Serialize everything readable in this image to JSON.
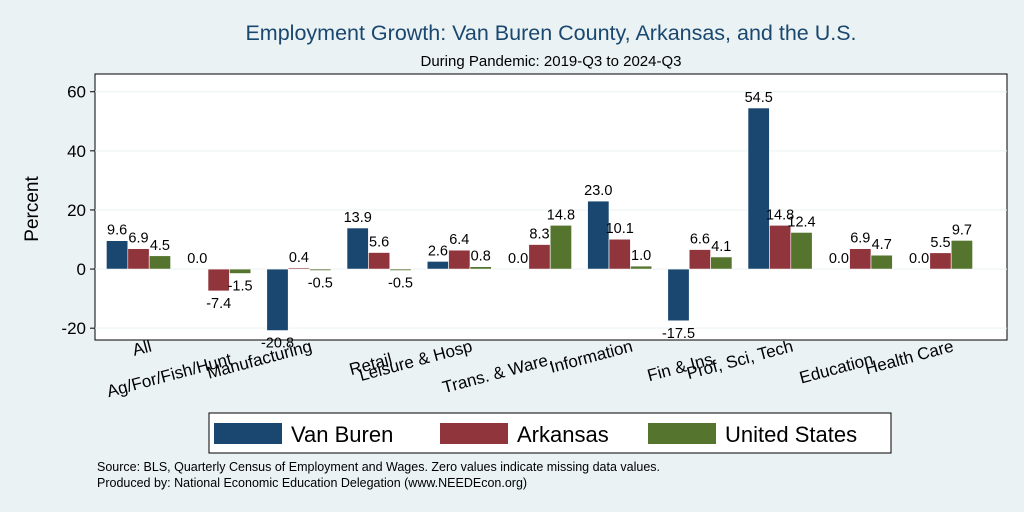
{
  "chart_data": {
    "type": "bar",
    "title": "Employment Growth: Van Buren County, Arkansas, and the U.S.",
    "subtitle": "During Pandemic: 2019-Q3 to 2024-Q3",
    "ylabel": "Percent",
    "xlabel": "",
    "ylim": [
      -24,
      66
    ],
    "yticks": [
      -20,
      0,
      20,
      40,
      60
    ],
    "ytick_labels": [
      "-20",
      "0",
      "20",
      "40",
      "60"
    ],
    "grid": true,
    "legend_position": "bottom",
    "categories": [
      "All",
      "Ag/For/Fish/Hunt",
      "Manufacturing",
      "Retail",
      "Leisure & Hosp",
      "Trans. & Ware.",
      "Information",
      "Fin & Ins",
      "Prof, Sci, Tech",
      "Education",
      "Health Care"
    ],
    "series": [
      {
        "name": "Van Buren",
        "color": "#1a476f",
        "values": [
          9.6,
          0.0,
          -20.8,
          13.9,
          2.6,
          0.0,
          23.0,
          -17.5,
          54.5,
          0.0,
          0.0
        ],
        "labels": [
          "9.6",
          "0.0",
          "-20.8",
          "13.9",
          "2.6",
          "0.0",
          "23.0",
          "-17.5",
          "54.5",
          "0.0",
          "0.0"
        ]
      },
      {
        "name": "Arkansas",
        "color": "#90353b",
        "values": [
          6.9,
          -7.4,
          0.4,
          5.6,
          6.4,
          8.3,
          10.1,
          6.6,
          14.8,
          6.9,
          5.5
        ],
        "labels": [
          "6.9",
          "-7.4",
          "0.4",
          "5.6",
          "6.4",
          "8.3",
          "10.1",
          "6.6",
          "14.8",
          "6.9",
          "5.5"
        ]
      },
      {
        "name": "United States",
        "color": "#55752f",
        "values": [
          4.5,
          -1.5,
          -0.5,
          -0.5,
          0.8,
          14.8,
          1.0,
          4.1,
          12.4,
          4.7,
          9.7
        ],
        "labels": [
          "4.5",
          "-1.5",
          "-0.5",
          "-0.5",
          "0.8",
          "14.8",
          "1.0",
          "4.1",
          "12.4",
          "4.7",
          "9.7"
        ]
      }
    ]
  },
  "footer": {
    "source": "Source: BLS, Quarterly Census of Employment and Wages. Zero values indicate missing data values.",
    "produced": "Produced by: National Economic Education Delegation (www.NEEDEcon.org)"
  }
}
